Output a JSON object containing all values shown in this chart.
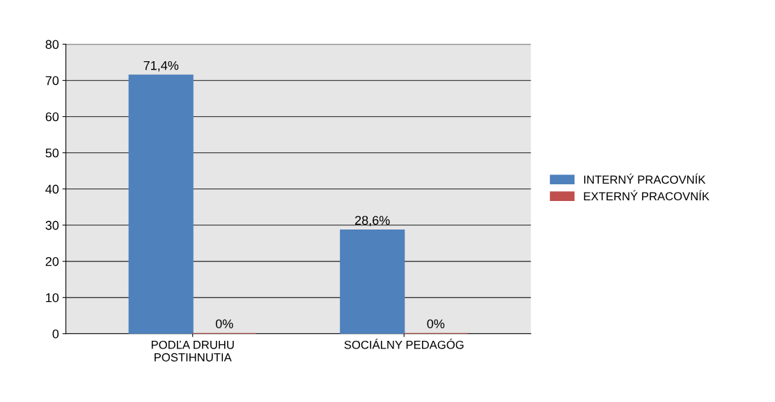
{
  "chart_data": {
    "type": "bar",
    "categories": [
      "PODĽA DRUHU\nPOSTIHNUTIA",
      "SOCIÁLNY PEDAGÓG"
    ],
    "series": [
      {
        "name": "INTERNÝ PRACOVNÍK",
        "color": "#4f81bd",
        "values": [
          71.4,
          28.6
        ],
        "value_labels": [
          "71,4%",
          "28,6%"
        ]
      },
      {
        "name": "EXTERNÝ PRACOVNÍK",
        "color": "#c0504d",
        "values": [
          0,
          0
        ],
        "value_labels": [
          "0%",
          "0%"
        ]
      }
    ],
    "ylim": [
      0,
      80
    ],
    "yticks": [
      0,
      10,
      20,
      30,
      40,
      50,
      60,
      70,
      80
    ],
    "grid": "y",
    "legend": "right"
  }
}
